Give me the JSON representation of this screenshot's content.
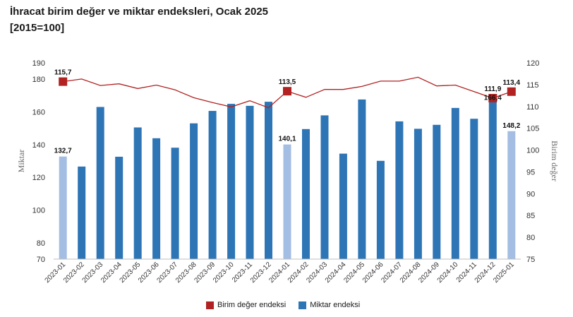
{
  "header": {
    "title": "İhracat birim değer ve miktar endeksleri, Ocak 2025",
    "subtitle": "[2015=100]"
  },
  "chart_data": {
    "type": "bar",
    "categories": [
      "2023-01",
      "2023-02",
      "2023-03",
      "2023-04",
      "2023-05",
      "2023-06",
      "2023-07",
      "2023-08",
      "2023-09",
      "2023-10",
      "2023-11",
      "2023-12",
      "2024-01",
      "2024-02",
      "2024-03",
      "2024-04",
      "2024-05",
      "2024-06",
      "2024-07",
      "2024-08",
      "2024-09",
      "2024-10",
      "2024-11",
      "2024-12",
      "2025-01"
    ],
    "ylabel_left": "Miktar",
    "ylabel_right": "Birim değer",
    "ylim_left": [
      70,
      190
    ],
    "ylim_right": [
      75,
      120
    ],
    "yticks_left": [
      80,
      100,
      120,
      140,
      160,
      180,
      190
    ],
    "yticks_left_bottom_label": 70,
    "yticks_right": [
      75,
      80,
      85,
      90,
      95,
      100,
      105,
      110,
      115,
      120
    ],
    "series": [
      {
        "name": "Miktar endeksi",
        "type": "bar",
        "axis": "left",
        "color": "#2e75b6",
        "highlight_color": "#a4bde3",
        "highlight_indices": [
          0,
          12,
          24
        ],
        "values": [
          132.7,
          126.6,
          163.0,
          132.6,
          150.5,
          143.9,
          138.1,
          153.0,
          160.6,
          164.9,
          163.7,
          166.2,
          140.1,
          149.5,
          157.9,
          134.5,
          167.6,
          130.1,
          154.2,
          149.7,
          152.1,
          162.4,
          155.8,
          166.4,
          148.2
        ]
      },
      {
        "name": "Birim değer endeksi",
        "type": "line",
        "axis": "right",
        "color": "#b22222",
        "marker_indices": [
          0,
          12,
          23,
          24
        ],
        "values": [
          115.7,
          116.3,
          114.8,
          115.2,
          114.1,
          114.9,
          113.8,
          112.0,
          110.9,
          109.9,
          111.3,
          109.7,
          113.5,
          112.1,
          113.9,
          113.9,
          114.6,
          115.8,
          115.8,
          116.7,
          114.7,
          114.9,
          113.4,
          111.9,
          113.4
        ]
      }
    ],
    "data_labels": [
      {
        "series": "Miktar endeksi",
        "index": 0,
        "text": "132,7"
      },
      {
        "series": "Miktar endeksi",
        "index": 12,
        "text": "140,1"
      },
      {
        "series": "Miktar endeksi",
        "index": 23,
        "text": "166,4"
      },
      {
        "series": "Miktar endeksi",
        "index": 24,
        "text": "148,2"
      },
      {
        "series": "Birim değer endeksi",
        "index": 0,
        "text": "115,7"
      },
      {
        "series": "Birim değer endeksi",
        "index": 12,
        "text": "113,5"
      },
      {
        "series": "Birim değer endeksi",
        "index": 23,
        "text": "111,9"
      },
      {
        "series": "Birim değer endeksi",
        "index": 24,
        "text": "113,4"
      }
    ],
    "legend": {
      "placement": "bottom",
      "items": [
        {
          "label": "Birim değer endeksi",
          "color": "#b22222"
        },
        {
          "label": "Miktar endeksi",
          "color": "#2e75b6"
        }
      ]
    },
    "grid": false
  }
}
